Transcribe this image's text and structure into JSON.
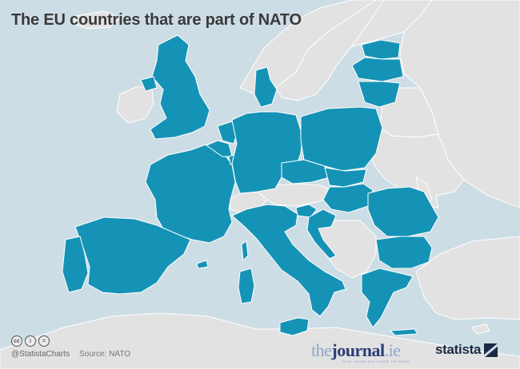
{
  "title": "The EU countries that are part of NATO",
  "footer": {
    "license_icons": [
      "cc-icon",
      "attribution-icon",
      "no-derivatives-icon"
    ],
    "handle": "@StatistaCharts",
    "source": "Source: NATO"
  },
  "partner": {
    "name_part1": "the",
    "name_part2": "journal",
    "name_part3": ".ie",
    "tagline": "READ, SHARE AND SHAPE THE NEWS"
  },
  "brand": {
    "name": "statista"
  },
  "map": {
    "legend_meaning": "EU countries that are NATO members",
    "colors": {
      "sea": "#cddde6",
      "eu_nato": "#1593b6",
      "other_land": "#e2e2e2",
      "border": "#ffffff"
    },
    "eu_nato_members": [
      "United Kingdom",
      "France",
      "Spain",
      "Portugal",
      "Belgium",
      "Netherlands",
      "Luxembourg",
      "Germany",
      "Denmark",
      "Italy",
      "Poland",
      "Czech Republic",
      "Slovakia",
      "Hungary",
      "Slovenia",
      "Croatia",
      "Romania",
      "Bulgaria",
      "Greece",
      "Estonia",
      "Latvia",
      "Lithuania"
    ],
    "other_land": [
      "Ireland",
      "Sweden",
      "Finland",
      "Norway",
      "Austria",
      "Switzerland",
      "Bosnia and Herzegovina",
      "Serbia",
      "Montenegro",
      "Albania",
      "North Macedonia",
      "Belarus",
      "Ukraine",
      "Moldova",
      "Russia",
      "Turkey",
      "Iceland",
      "Morocco",
      "Algeria",
      "Tunisia",
      "Libya",
      "Cyprus",
      "Malta"
    ]
  }
}
